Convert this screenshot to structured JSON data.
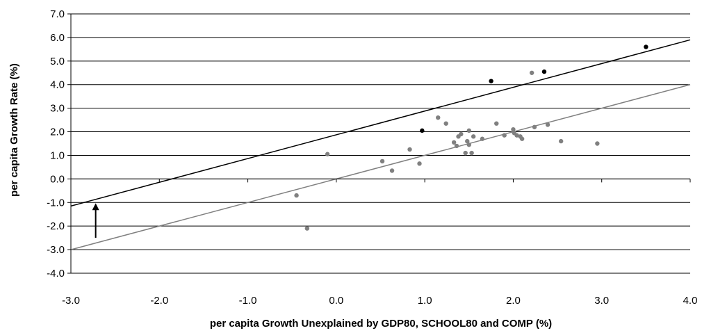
{
  "chart_data": {
    "type": "scatter",
    "xlabel": "per capita Growth Unexplained by GDP80, SCHOOL80 and COMP (%)",
    "ylabel": "per capita Growth Rate (%)",
    "xlim": [
      -3.0,
      4.0
    ],
    "ylim": [
      -4.0,
      7.0
    ],
    "x_ticks": [
      -3.0,
      -2.0,
      -1.0,
      0.0,
      1.0,
      2.0,
      3.0,
      4.0
    ],
    "y_ticks": [
      -4.0,
      -3.0,
      -2.0,
      -1.0,
      0.0,
      1.0,
      2.0,
      3.0,
      4.0,
      5.0,
      6.0,
      7.0
    ],
    "tick_format": "one-decimal",
    "grid": "horizontal",
    "legend": "none",
    "colors": {
      "gray_series": "#808080",
      "black_series": "#000000",
      "axis": "#000000",
      "grid": "#000000"
    },
    "series": [
      {
        "color": "#808080",
        "points": [
          [
            -0.45,
            -0.7
          ],
          [
            -0.33,
            -2.1
          ],
          [
            -0.1,
            1.05
          ],
          [
            0.52,
            0.75
          ],
          [
            0.63,
            0.35
          ],
          [
            0.83,
            1.25
          ],
          [
            0.94,
            0.65
          ],
          [
            1.15,
            2.6
          ],
          [
            1.24,
            2.35
          ],
          [
            1.33,
            1.55
          ],
          [
            1.36,
            1.4
          ],
          [
            1.38,
            1.8
          ],
          [
            1.41,
            1.9
          ],
          [
            1.46,
            1.1
          ],
          [
            1.48,
            1.6
          ],
          [
            1.5,
            2.05
          ],
          [
            1.5,
            1.45
          ],
          [
            1.53,
            1.1
          ],
          [
            1.55,
            1.8
          ],
          [
            1.65,
            1.7
          ],
          [
            1.81,
            2.35
          ],
          [
            1.9,
            1.85
          ],
          [
            2.0,
            2.1
          ],
          [
            2.01,
            1.95
          ],
          [
            2.04,
            1.85
          ],
          [
            2.08,
            1.8
          ],
          [
            2.1,
            1.7
          ],
          [
            2.21,
            4.5
          ],
          [
            2.24,
            2.2
          ],
          [
            2.39,
            2.3
          ],
          [
            2.54,
            1.6
          ],
          [
            2.95,
            1.5
          ]
        ],
        "trend": {
          "x": [
            -3.0,
            4.0
          ],
          "y": [
            -3.0,
            4.0
          ]
        }
      },
      {
        "color": "#000000",
        "points": [
          [
            0.97,
            2.05
          ],
          [
            1.75,
            4.15
          ],
          [
            2.35,
            4.55
          ],
          [
            3.5,
            5.6
          ]
        ],
        "trend": {
          "x": [
            -3.0,
            4.0
          ],
          "y": [
            -1.15,
            5.9
          ]
        }
      }
    ],
    "arrow": {
      "x": -2.72,
      "y_from": -2.5,
      "y_to": -1.0
    }
  }
}
